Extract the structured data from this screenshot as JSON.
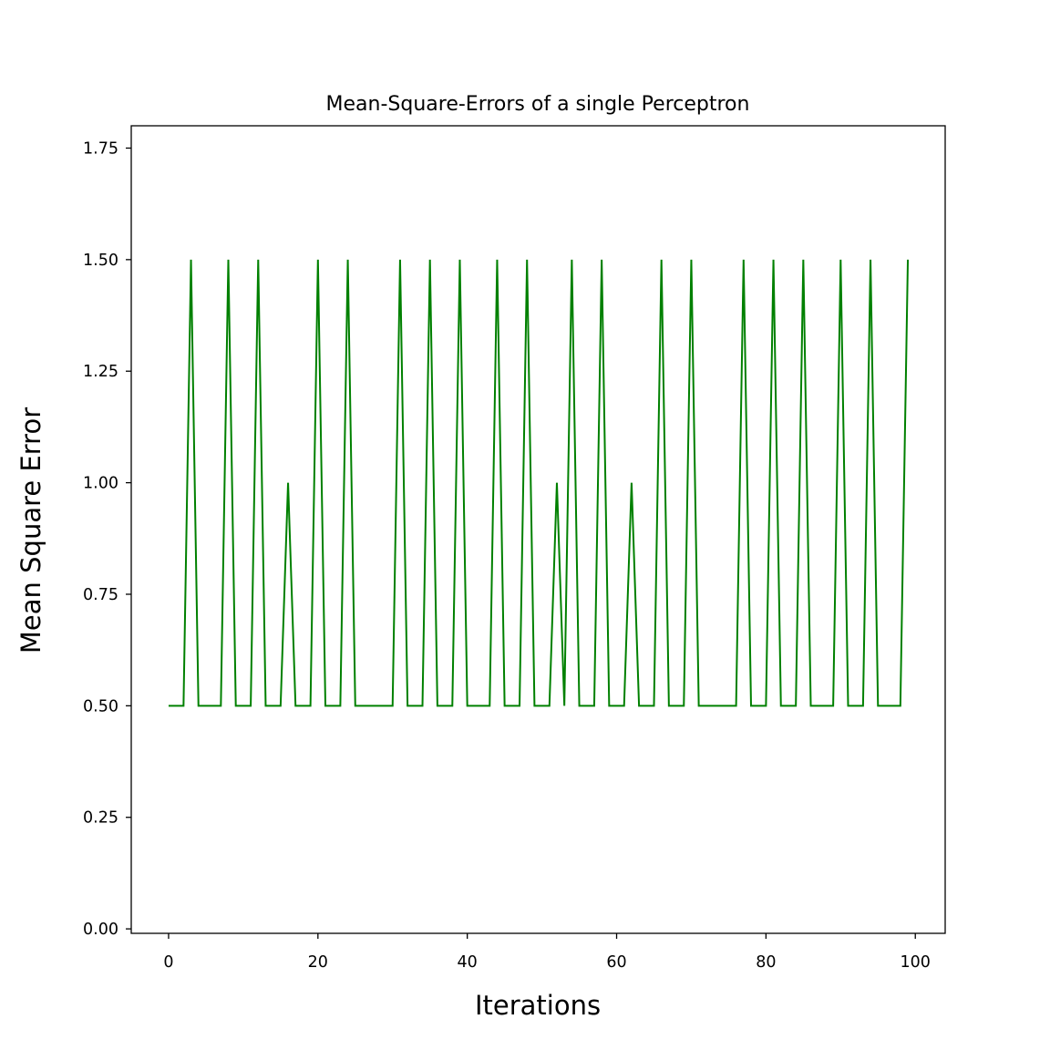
{
  "chart_data": {
    "type": "line",
    "title": "Mean-Square-Errors of a single Perceptron",
    "xlabel": "Iterations",
    "ylabel": "Mean Square Error",
    "xlim": [
      -5,
      104
    ],
    "ylim": [
      -0.01,
      1.8
    ],
    "xticks": [
      0,
      20,
      40,
      60,
      80,
      100
    ],
    "xtick_labels": [
      "0",
      "20",
      "40",
      "60",
      "80",
      "100"
    ],
    "yticks": [
      0.0,
      0.25,
      0.5,
      0.75,
      1.0,
      1.25,
      1.5,
      1.75
    ],
    "ytick_labels": [
      "0.00",
      "0.25",
      "0.50",
      "0.75",
      "1.00",
      "1.25",
      "1.50",
      "1.75"
    ],
    "grid": false,
    "series": [
      {
        "color": "#008000",
        "x": [
          0,
          1,
          2,
          3,
          4,
          5,
          6,
          7,
          8,
          9,
          10,
          11,
          12,
          13,
          14,
          15,
          16,
          17,
          18,
          19,
          20,
          21,
          22,
          23,
          24,
          25,
          26,
          27,
          28,
          29,
          30,
          31,
          32,
          33,
          34,
          35,
          36,
          37,
          38,
          39,
          40,
          41,
          42,
          43,
          44,
          45,
          46,
          47,
          48,
          49,
          50,
          51,
          52,
          53,
          54,
          55,
          56,
          57,
          58,
          59,
          60,
          61,
          62,
          63,
          64,
          65,
          66,
          67,
          68,
          69,
          70,
          71,
          72,
          73,
          74,
          75,
          76,
          77,
          78,
          79,
          80,
          81,
          82,
          83,
          84,
          85,
          86,
          87,
          88,
          89,
          90,
          91,
          92,
          93,
          94,
          95,
          96,
          97,
          98,
          99
        ],
        "values": [
          0.5,
          0.5,
          0.5,
          1.5,
          0.5,
          0.5,
          0.5,
          0.5,
          1.5,
          0.5,
          0.5,
          0.5,
          1.5,
          0.5,
          0.5,
          0.5,
          1.0,
          0.5,
          0.5,
          0.5,
          1.5,
          0.5,
          0.5,
          0.5,
          1.5,
          0.5,
          0.5,
          0.5,
          0.5,
          0.5,
          0.5,
          1.5,
          0.5,
          0.5,
          0.5,
          1.5,
          0.5,
          0.5,
          0.5,
          1.5,
          0.5,
          0.5,
          0.5,
          0.5,
          1.5,
          0.5,
          0.5,
          0.5,
          1.5,
          0.5,
          0.5,
          0.5,
          1.0,
          0.5,
          1.5,
          0.5,
          0.5,
          0.5,
          1.5,
          0.5,
          0.5,
          0.5,
          1.0,
          0.5,
          0.5,
          0.5,
          1.5,
          0.5,
          0.5,
          0.5,
          1.5,
          0.5,
          0.5,
          0.5,
          0.5,
          0.5,
          0.5,
          1.5,
          0.5,
          0.5,
          0.5,
          1.5,
          0.5,
          0.5,
          0.5,
          1.5,
          0.5,
          0.5,
          0.5,
          0.5,
          1.5,
          0.5,
          0.5,
          0.5,
          1.5,
          0.5,
          0.5,
          0.5,
          0.5,
          1.5
        ]
      }
    ]
  }
}
